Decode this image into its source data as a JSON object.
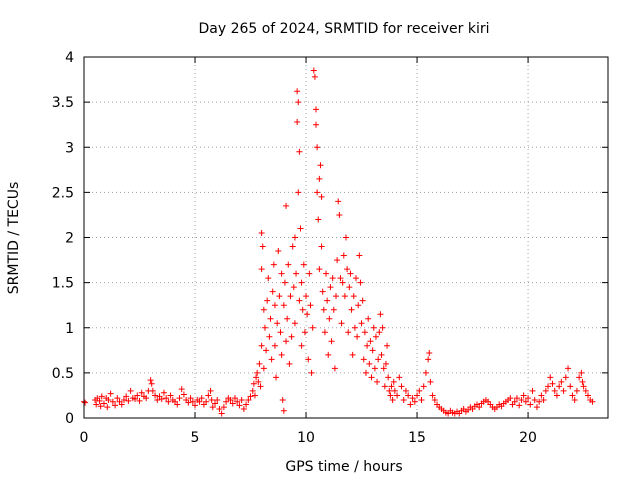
{
  "chart_data": {
    "type": "scatter",
    "title": "Day 265 of 2024, SRMTID for receiver kiri",
    "xlabel": "GPS time / hours",
    "ylabel": "SRMTID / TECUs",
    "xlim": [
      0,
      23.6
    ],
    "ylim": [
      0,
      4
    ],
    "grid": true,
    "marker": "+",
    "colors": {
      "points": "#ff0000",
      "grid": "#a0a0a0",
      "axis": "#000000"
    },
    "x_ticks": [
      {
        "value": 0,
        "label": "0"
      },
      {
        "value": 5,
        "label": "5"
      },
      {
        "value": 10,
        "label": "10"
      },
      {
        "value": 15,
        "label": "15"
      },
      {
        "value": 20,
        "label": "20"
      }
    ],
    "y_ticks": [
      {
        "value": 0,
        "label": "0"
      },
      {
        "value": 0.5,
        "label": "0.5"
      },
      {
        "value": 1,
        "label": "1"
      },
      {
        "value": 1.5,
        "label": "1.5"
      },
      {
        "value": 2,
        "label": "2"
      },
      {
        "value": 2.5,
        "label": "2.5"
      },
      {
        "value": 3,
        "label": "3"
      },
      {
        "value": 3.5,
        "label": "3.5"
      },
      {
        "value": 4,
        "label": "4"
      }
    ],
    "points": [
      [
        0.0,
        0.18
      ],
      [
        0.05,
        0.17
      ],
      [
        0.5,
        0.2
      ],
      [
        0.55,
        0.15
      ],
      [
        0.6,
        0.22
      ],
      [
        0.7,
        0.19
      ],
      [
        0.75,
        0.13
      ],
      [
        0.8,
        0.24
      ],
      [
        0.9,
        0.16
      ],
      [
        1.0,
        0.22
      ],
      [
        1.05,
        0.12
      ],
      [
        1.1,
        0.2
      ],
      [
        1.2,
        0.27
      ],
      [
        1.3,
        0.18
      ],
      [
        1.4,
        0.14
      ],
      [
        1.5,
        0.22
      ],
      [
        1.6,
        0.18
      ],
      [
        1.7,
        0.15
      ],
      [
        1.8,
        0.2
      ],
      [
        1.9,
        0.24
      ],
      [
        2.0,
        0.19
      ],
      [
        2.1,
        0.3
      ],
      [
        2.2,
        0.22
      ],
      [
        2.3,
        0.21
      ],
      [
        2.4,
        0.25
      ],
      [
        2.5,
        0.19
      ],
      [
        2.6,
        0.28
      ],
      [
        2.7,
        0.24
      ],
      [
        2.8,
        0.22
      ],
      [
        2.9,
        0.3
      ],
      [
        3.0,
        0.42
      ],
      [
        3.05,
        0.38
      ],
      [
        3.1,
        0.3
      ],
      [
        3.2,
        0.25
      ],
      [
        3.3,
        0.2
      ],
      [
        3.4,
        0.24
      ],
      [
        3.5,
        0.21
      ],
      [
        3.6,
        0.28
      ],
      [
        3.7,
        0.22
      ],
      [
        3.8,
        0.18
      ],
      [
        3.9,
        0.25
      ],
      [
        4.0,
        0.2
      ],
      [
        4.1,
        0.18
      ],
      [
        4.2,
        0.15
      ],
      [
        4.3,
        0.22
      ],
      [
        4.4,
        0.32
      ],
      [
        4.5,
        0.26
      ],
      [
        4.6,
        0.2
      ],
      [
        4.7,
        0.17
      ],
      [
        4.8,
        0.22
      ],
      [
        4.9,
        0.18
      ],
      [
        5.0,
        0.14
      ],
      [
        5.1,
        0.2
      ],
      [
        5.2,
        0.18
      ],
      [
        5.3,
        0.22
      ],
      [
        5.4,
        0.15
      ],
      [
        5.5,
        0.18
      ],
      [
        5.6,
        0.25
      ],
      [
        5.7,
        0.3
      ],
      [
        5.75,
        0.2
      ],
      [
        5.8,
        0.12
      ],
      [
        5.9,
        0.16
      ],
      [
        6.0,
        0.2
      ],
      [
        6.1,
        0.1
      ],
      [
        6.2,
        0.05
      ],
      [
        6.3,
        0.12
      ],
      [
        6.4,
        0.18
      ],
      [
        6.5,
        0.22
      ],
      [
        6.6,
        0.2
      ],
      [
        6.7,
        0.16
      ],
      [
        6.8,
        0.22
      ],
      [
        6.9,
        0.18
      ],
      [
        7.0,
        0.14
      ],
      [
        7.1,
        0.2
      ],
      [
        7.2,
        0.1
      ],
      [
        7.3,
        0.15
      ],
      [
        7.4,
        0.2
      ],
      [
        7.5,
        0.24
      ],
      [
        7.6,
        0.3
      ],
      [
        7.65,
        0.38
      ],
      [
        7.7,
        0.25
      ],
      [
        7.75,
        0.45
      ],
      [
        7.8,
        0.5
      ],
      [
        7.85,
        0.4
      ],
      [
        7.9,
        0.6
      ],
      [
        7.95,
        0.35
      ],
      [
        8.0,
        0.8
      ],
      [
        8.0,
        1.65
      ],
      [
        8.0,
        2.05
      ],
      [
        8.05,
        1.9
      ],
      [
        8.1,
        1.2
      ],
      [
        8.1,
        0.55
      ],
      [
        8.15,
        1.0
      ],
      [
        8.2,
        0.75
      ],
      [
        8.25,
        1.3
      ],
      [
        8.3,
        1.55
      ],
      [
        8.35,
        0.9
      ],
      [
        8.4,
        1.1
      ],
      [
        8.45,
        0.65
      ],
      [
        8.5,
        1.4
      ],
      [
        8.55,
        1.7
      ],
      [
        8.6,
        1.25
      ],
      [
        8.6,
        0.8
      ],
      [
        8.65,
        0.45
      ],
      [
        8.7,
        1.05
      ],
      [
        8.75,
        1.85
      ],
      [
        8.8,
        1.35
      ],
      [
        8.85,
        0.95
      ],
      [
        8.9,
        1.6
      ],
      [
        8.9,
        0.7
      ],
      [
        8.95,
        0.2
      ],
      [
        9.0,
        0.08
      ],
      [
        9.0,
        1.25
      ],
      [
        9.05,
        1.5
      ],
      [
        9.1,
        0.85
      ],
      [
        9.1,
        2.35
      ],
      [
        9.15,
        1.1
      ],
      [
        9.2,
        1.7
      ],
      [
        9.25,
        0.6
      ],
      [
        9.3,
        1.35
      ],
      [
        9.35,
        0.9
      ],
      [
        9.4,
        1.9
      ],
      [
        9.45,
        1.45
      ],
      [
        9.5,
        1.05
      ],
      [
        9.5,
        2.0
      ],
      [
        9.55,
        1.6
      ],
      [
        9.6,
        3.28
      ],
      [
        9.6,
        3.62
      ],
      [
        9.65,
        3.5
      ],
      [
        9.65,
        2.5
      ],
      [
        9.7,
        2.95
      ],
      [
        9.7,
        1.3
      ],
      [
        9.75,
        2.1
      ],
      [
        9.8,
        1.5
      ],
      [
        9.8,
        0.8
      ],
      [
        9.85,
        1.2
      ],
      [
        9.9,
        1.7
      ],
      [
        9.95,
        0.95
      ],
      [
        10.0,
        1.35
      ],
      [
        10.05,
        1.15
      ],
      [
        10.1,
        0.65
      ],
      [
        10.15,
        1.6
      ],
      [
        10.2,
        1.25
      ],
      [
        10.25,
        0.5
      ],
      [
        10.3,
        1.0
      ],
      [
        10.35,
        3.85
      ],
      [
        10.4,
        3.78
      ],
      [
        10.45,
        3.42
      ],
      [
        10.45,
        3.25
      ],
      [
        10.5,
        3.0
      ],
      [
        10.5,
        2.5
      ],
      [
        10.55,
        2.2
      ],
      [
        10.6,
        2.65
      ],
      [
        10.6,
        1.65
      ],
      [
        10.65,
        2.8
      ],
      [
        10.7,
        2.45
      ],
      [
        10.7,
        1.9
      ],
      [
        10.75,
        1.4
      ],
      [
        10.8,
        1.2
      ],
      [
        10.85,
        0.95
      ],
      [
        10.9,
        1.6
      ],
      [
        10.95,
        1.3
      ],
      [
        11.0,
        0.7
      ],
      [
        11.05,
        1.1
      ],
      [
        11.1,
        1.45
      ],
      [
        11.15,
        0.85
      ],
      [
        11.2,
        1.55
      ],
      [
        11.25,
        1.2
      ],
      [
        11.3,
        0.55
      ],
      [
        11.35,
        1.35
      ],
      [
        11.4,
        1.75
      ],
      [
        11.45,
        2.4
      ],
      [
        11.5,
        2.25
      ],
      [
        11.55,
        1.55
      ],
      [
        11.6,
        1.05
      ],
      [
        11.65,
        1.5
      ],
      [
        11.7,
        1.8
      ],
      [
        11.75,
        1.35
      ],
      [
        11.8,
        2.0
      ],
      [
        11.85,
        1.65
      ],
      [
        11.9,
        0.95
      ],
      [
        11.95,
        1.45
      ],
      [
        12.0,
        1.6
      ],
      [
        12.05,
        1.2
      ],
      [
        12.1,
        0.7
      ],
      [
        12.15,
        1.35
      ],
      [
        12.2,
        1.0
      ],
      [
        12.25,
        1.55
      ],
      [
        12.3,
        0.9
      ],
      [
        12.35,
        1.25
      ],
      [
        12.4,
        1.8
      ],
      [
        12.45,
        1.5
      ],
      [
        12.5,
        1.05
      ],
      [
        12.55,
        1.3
      ],
      [
        12.6,
        0.65
      ],
      [
        12.65,
        0.95
      ],
      [
        12.7,
        0.5
      ],
      [
        12.75,
        0.8
      ],
      [
        12.8,
        1.1
      ],
      [
        12.85,
        0.6
      ],
      [
        12.9,
        0.85
      ],
      [
        12.95,
        0.45
      ],
      [
        13.0,
        0.75
      ],
      [
        13.05,
        1.0
      ],
      [
        13.1,
        0.55
      ],
      [
        13.15,
        0.9
      ],
      [
        13.2,
        0.4
      ],
      [
        13.25,
        0.65
      ],
      [
        13.3,
        0.95
      ],
      [
        13.35,
        1.15
      ],
      [
        13.4,
        0.7
      ],
      [
        13.45,
        1.0
      ],
      [
        13.5,
        0.55
      ],
      [
        13.55,
        0.35
      ],
      [
        13.6,
        0.6
      ],
      [
        13.65,
        0.8
      ],
      [
        13.7,
        0.45
      ],
      [
        13.75,
        0.3
      ],
      [
        13.8,
        0.25
      ],
      [
        13.85,
        0.35
      ],
      [
        13.9,
        0.2
      ],
      [
        13.95,
        0.4
      ],
      [
        14.0,
        0.3
      ],
      [
        14.1,
        0.25
      ],
      [
        14.2,
        0.45
      ],
      [
        14.3,
        0.35
      ],
      [
        14.4,
        0.2
      ],
      [
        14.5,
        0.3
      ],
      [
        14.6,
        0.25
      ],
      [
        14.7,
        0.15
      ],
      [
        14.8,
        0.22
      ],
      [
        14.9,
        0.18
      ],
      [
        15.0,
        0.25
      ],
      [
        15.1,
        0.3
      ],
      [
        15.2,
        0.2
      ],
      [
        15.3,
        0.35
      ],
      [
        15.4,
        0.5
      ],
      [
        15.5,
        0.65
      ],
      [
        15.55,
        0.72
      ],
      [
        15.6,
        0.4
      ],
      [
        15.7,
        0.25
      ],
      [
        15.8,
        0.2
      ],
      [
        15.9,
        0.15
      ],
      [
        16.0,
        0.12
      ],
      [
        16.1,
        0.1
      ],
      [
        16.2,
        0.08
      ],
      [
        16.3,
        0.06
      ],
      [
        16.4,
        0.05
      ],
      [
        16.5,
        0.08
      ],
      [
        16.6,
        0.06
      ],
      [
        16.7,
        0.05
      ],
      [
        16.8,
        0.07
      ],
      [
        16.9,
        0.05
      ],
      [
        17.0,
        0.08
      ],
      [
        17.1,
        0.1
      ],
      [
        17.2,
        0.07
      ],
      [
        17.3,
        0.09
      ],
      [
        17.4,
        0.12
      ],
      [
        17.5,
        0.1
      ],
      [
        17.6,
        0.13
      ],
      [
        17.7,
        0.15
      ],
      [
        17.8,
        0.12
      ],
      [
        17.9,
        0.16
      ],
      [
        18.0,
        0.18
      ],
      [
        18.1,
        0.2
      ],
      [
        18.2,
        0.18
      ],
      [
        18.3,
        0.15
      ],
      [
        18.4,
        0.12
      ],
      [
        18.5,
        0.1
      ],
      [
        18.6,
        0.12
      ],
      [
        18.7,
        0.15
      ],
      [
        18.8,
        0.13
      ],
      [
        18.9,
        0.16
      ],
      [
        19.0,
        0.18
      ],
      [
        19.1,
        0.2
      ],
      [
        19.2,
        0.22
      ],
      [
        19.3,
        0.15
      ],
      [
        19.4,
        0.18
      ],
      [
        19.5,
        0.22
      ],
      [
        19.6,
        0.14
      ],
      [
        19.7,
        0.2
      ],
      [
        19.8,
        0.25
      ],
      [
        19.9,
        0.18
      ],
      [
        20.0,
        0.22
      ],
      [
        20.1,
        0.15
      ],
      [
        20.2,
        0.3
      ],
      [
        20.3,
        0.2
      ],
      [
        20.4,
        0.12
      ],
      [
        20.5,
        0.18
      ],
      [
        20.6,
        0.25
      ],
      [
        20.7,
        0.2
      ],
      [
        20.8,
        0.3
      ],
      [
        20.9,
        0.35
      ],
      [
        21.0,
        0.45
      ],
      [
        21.1,
        0.38
      ],
      [
        21.2,
        0.3
      ],
      [
        21.3,
        0.25
      ],
      [
        21.4,
        0.35
      ],
      [
        21.5,
        0.4
      ],
      [
        21.6,
        0.3
      ],
      [
        21.7,
        0.45
      ],
      [
        21.8,
        0.55
      ],
      [
        21.9,
        0.35
      ],
      [
        22.0,
        0.25
      ],
      [
        22.1,
        0.2
      ],
      [
        22.2,
        0.3
      ],
      [
        22.3,
        0.45
      ],
      [
        22.4,
        0.5
      ],
      [
        22.45,
        0.4
      ],
      [
        22.5,
        0.35
      ],
      [
        22.6,
        0.3
      ],
      [
        22.7,
        0.25
      ],
      [
        22.8,
        0.2
      ],
      [
        22.9,
        0.18
      ]
    ]
  }
}
